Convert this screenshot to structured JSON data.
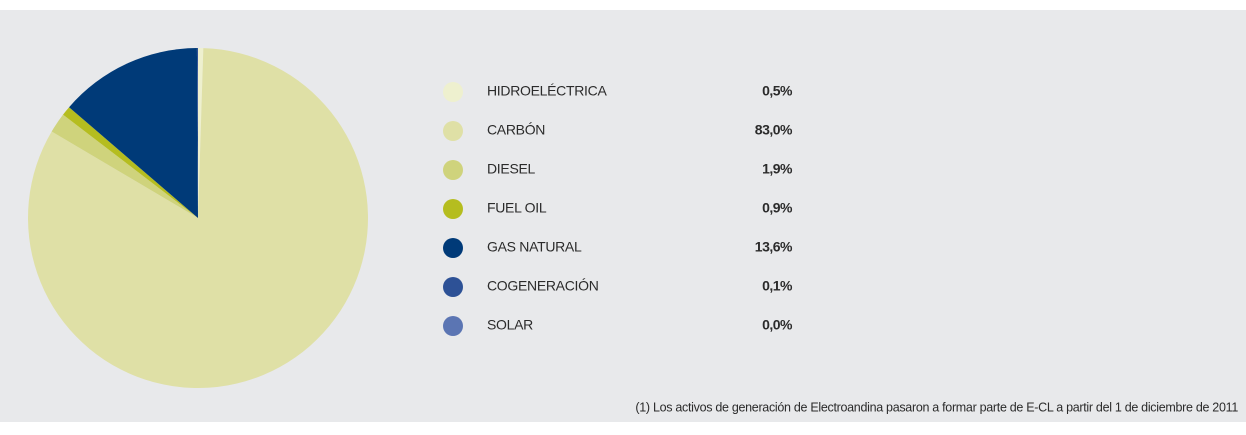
{
  "chart_data": {
    "type": "pie",
    "categories": [
      "HIDROELÉCTRICA",
      "CARBÓN",
      "DIESEL",
      "FUEL OIL",
      "GAS NATURAL",
      "COGENERACIÓN",
      "SOLAR"
    ],
    "values": [
      0.5,
      83.0,
      1.9,
      0.9,
      13.6,
      0.1,
      0.0
    ],
    "value_labels": [
      "0,5%",
      "83,0%",
      "1,9%",
      "0,9%",
      "13,6%",
      "0,1%",
      "0,0%"
    ],
    "colors": [
      "#eef0cf",
      "#dfe0a6",
      "#cfd37c",
      "#b5bd1f",
      "#003a78",
      "#2d5196",
      "#5b75b3"
    ],
    "annotation": "(1) Los activos de generación de Electroandina pasaron a formar parte de E-CL a partir del 1 de diciembre de 2011"
  }
}
